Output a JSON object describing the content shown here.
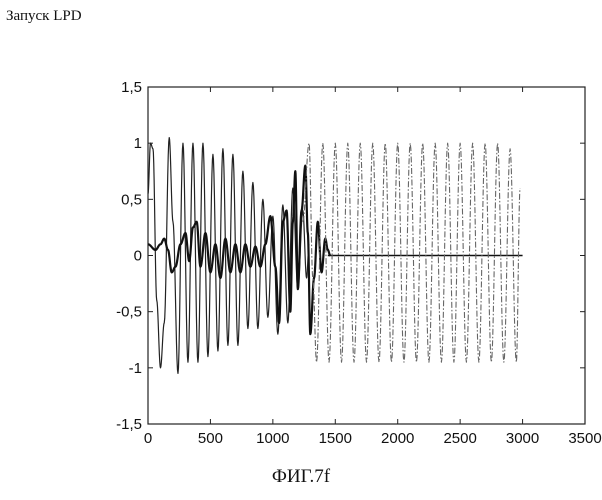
{
  "page": {
    "title": "Запуск LPD",
    "caption": "ФИГ.7f"
  },
  "chart_data": {
    "type": "line",
    "title": "",
    "xlabel": "",
    "ylabel": "",
    "xlim": [
      0,
      3500
    ],
    "ylim": [
      -1.5,
      1.5
    ],
    "xticks": [
      0,
      500,
      1000,
      1500,
      2000,
      2500,
      3000,
      3500
    ],
    "xtick_labels": [
      "0",
      "500",
      "1000",
      "1500",
      "2000",
      "2500",
      "3000",
      "3500"
    ],
    "yticks": [
      1.5,
      1,
      0.5,
      0,
      -0.5,
      -1,
      -1.5
    ],
    "ytick_labels": [
      "1,5",
      "1",
      "0,5",
      "0",
      "-0,5",
      "-1",
      "-1,5"
    ],
    "grid": false,
    "legend": "none",
    "series": [
      {
        "style": "solid-thin",
        "color": "#222222",
        "x": [
          0,
          20,
          40,
          70,
          100,
          130,
          170,
          200,
          240,
          280,
          320,
          360,
          400,
          440,
          480,
          520,
          560,
          600,
          640,
          680,
          720,
          760,
          800,
          840,
          880,
          920,
          960,
          1000,
          1040,
          1080,
          1120,
          1160,
          1200,
          1240,
          1270,
          1290
        ],
        "y": [
          0.55,
          1.0,
          0.95,
          -0.4,
          -1.0,
          -0.6,
          1.05,
          0.3,
          -1.05,
          1.0,
          -0.95,
          1.0,
          -0.95,
          1.0,
          -0.9,
          0.9,
          -0.85,
          0.95,
          -0.8,
          0.9,
          -0.8,
          0.75,
          -0.65,
          0.65,
          -0.65,
          0.5,
          -0.55,
          0.35,
          -0.7,
          0.45,
          -0.6,
          0.6,
          -0.3,
          0.4,
          -0.2,
          0.1
        ]
      },
      {
        "style": "solid-thick",
        "color": "#111111",
        "x": [
          0,
          60,
          100,
          130,
          160,
          190,
          220,
          260,
          300,
          330,
          360,
          390,
          420,
          460,
          500,
          540,
          580,
          620,
          660,
          700,
          740,
          780,
          820,
          860,
          900,
          940,
          980,
          1020,
          1050,
          1080,
          1110,
          1140,
          1160,
          1180,
          1200,
          1230,
          1260,
          1280,
          1300,
          1330,
          1360,
          1390,
          1420,
          1440,
          1460
        ],
        "y": [
          0.1,
          0.05,
          0.1,
          0.15,
          0.05,
          -0.15,
          -0.1,
          0.1,
          0.2,
          -0.05,
          0.25,
          0.3,
          -0.1,
          0.2,
          -0.15,
          0.1,
          -0.2,
          0.15,
          -0.15,
          0.1,
          -0.15,
          0.1,
          -0.1,
          0.08,
          -0.1,
          0.1,
          0.35,
          -0.1,
          -0.6,
          0.3,
          0.4,
          -0.5,
          0.3,
          0.75,
          -0.3,
          0.4,
          0.8,
          0.2,
          -0.7,
          -0.2,
          0.3,
          -0.15,
          0.15,
          0.05,
          0.0
        ]
      },
      {
        "style": "solid-flat",
        "color": "#111111",
        "x": [
          1440,
          3000
        ],
        "y": [
          0.0,
          0.0
        ]
      },
      {
        "style": "dash-dot",
        "color": "#666666",
        "x": [
          1240,
          1290,
          1320,
          1350,
          1400,
          1450,
          1500,
          1550,
          1600,
          1650,
          1700,
          1750,
          1800,
          1850,
          1900,
          1950,
          2000,
          2050,
          2100,
          2150,
          2200,
          2250,
          2300,
          2350,
          2400,
          2450,
          2500,
          2550,
          2600,
          2650,
          2700,
          2750,
          2800,
          2850,
          2900,
          2950,
          2980
        ],
        "y": [
          0.3,
          1.0,
          -0.2,
          -0.95,
          1.0,
          -0.95,
          1.0,
          -0.95,
          1.0,
          -0.95,
          1.0,
          -0.95,
          1.0,
          -0.95,
          1.0,
          -0.95,
          1.0,
          -0.95,
          1.0,
          -0.95,
          1.0,
          -0.95,
          1.0,
          -0.95,
          1.0,
          -0.95,
          1.0,
          -0.95,
          1.0,
          -0.95,
          1.0,
          -0.95,
          1.0,
          -0.95,
          0.95,
          -0.95,
          0.6
        ]
      }
    ]
  }
}
